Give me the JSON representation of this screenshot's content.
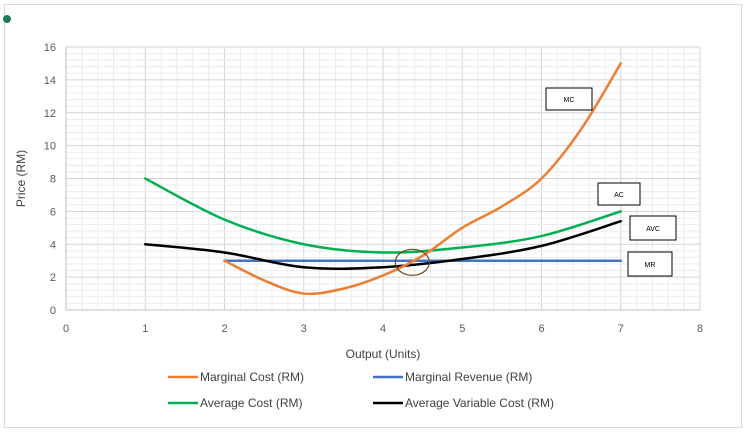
{
  "chart_data": {
    "type": "line",
    "xlabel": "Output (Units)",
    "ylabel": "Price (RM)",
    "xlim": [
      0,
      8
    ],
    "ylim": [
      0,
      16
    ],
    "xticks": [
      0,
      1,
      2,
      3,
      4,
      5,
      6,
      7,
      8
    ],
    "yticks": [
      0,
      2,
      4,
      6,
      8,
      10,
      12,
      14,
      16
    ],
    "grid": true,
    "legend_position": "bottom",
    "series": [
      {
        "name": "Marginal Cost (RM)",
        "tag": "MC",
        "color": "#ed7d31",
        "x": [
          2,
          2.5,
          3,
          3.5,
          4,
          4.5,
          5,
          5.5,
          6,
          6.5,
          7
        ],
        "y": [
          3,
          1.8,
          1,
          1.3,
          2.1,
          3.3,
          5,
          6.3,
          8,
          11,
          15
        ]
      },
      {
        "name": "Marginal Revenue (RM)",
        "tag": "MR",
        "color": "#4472c4",
        "x": [
          2,
          7
        ],
        "y": [
          3,
          3
        ]
      },
      {
        "name": "Average Cost (RM)",
        "tag": "AC",
        "color": "#00b050",
        "x": [
          1,
          2,
          3,
          4,
          5,
          6,
          7
        ],
        "y": [
          8,
          5.5,
          4,
          3.5,
          3.8,
          4.5,
          6
        ]
      },
      {
        "name": "Average Variable Cost (RM)",
        "tag": "AVC",
        "color": "#000000",
        "x": [
          1,
          2,
          3,
          4,
          5,
          6,
          7
        ],
        "y": [
          4,
          3.5,
          2.6,
          2.6,
          3.1,
          3.9,
          5.4
        ]
      }
    ],
    "annotations": [
      "MC",
      "AC",
      "AVC",
      "MR"
    ],
    "highlight_circle": {
      "x": 4.37,
      "y": 2.9
    }
  }
}
